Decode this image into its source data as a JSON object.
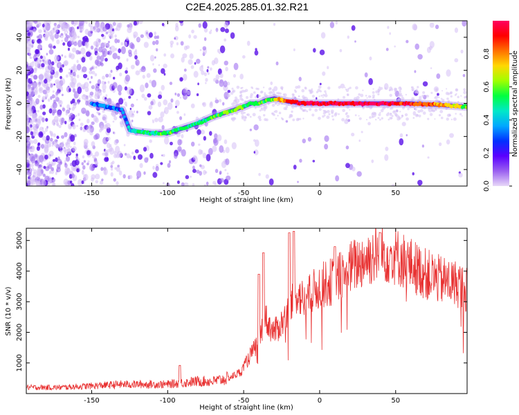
{
  "title": "C2E4.2025.285.01.32.R21",
  "chart_data": [
    {
      "type": "heatmap",
      "xlabel": "Height of straight line (km)",
      "ylabel": "Frequency (Hz)",
      "xlim": [
        -193,
        97
      ],
      "ylim": [
        -50,
        50
      ],
      "xticks": [
        -150,
        -100,
        -50,
        0,
        50
      ],
      "yticks": [
        -40,
        -20,
        0,
        20,
        40
      ],
      "colorbar": {
        "label": "Normalized spectral amplitude",
        "range": [
          0.0,
          1.0
        ],
        "ticks": [
          "0.0",
          "0.2",
          "0.4",
          "0.6",
          "0.8"
        ],
        "colors": [
          "#e8d8f8",
          "#9a60f0",
          "#5a00ff",
          "#0030ff",
          "#00a8ff",
          "#00e8c8",
          "#00ff40",
          "#a0ff00",
          "#ffd800",
          "#ff7000",
          "#ff0000",
          "#ff0060"
        ]
      },
      "ridge": {
        "x": [
          -150,
          -140,
          -130,
          -125,
          -120,
          -110,
          -100,
          -90,
          -80,
          -70,
          -60,
          -50,
          -45,
          -40,
          -35,
          -30,
          -25,
          -20,
          -10,
          0,
          20,
          40,
          60,
          80,
          97
        ],
        "y": [
          0,
          -2,
          -4,
          -16,
          -17,
          -18,
          -18,
          -15,
          -12,
          -8,
          -5,
          -2,
          0,
          0,
          2,
          3,
          2,
          1,
          0,
          0,
          0,
          0,
          0,
          -1,
          -2
        ],
        "amplitude": [
          0.35,
          0.3,
          0.3,
          0.45,
          0.5,
          0.5,
          0.55,
          0.5,
          0.5,
          0.55,
          0.6,
          0.55,
          0.5,
          0.55,
          0.55,
          0.65,
          0.75,
          0.9,
          0.95,
          0.95,
          0.95,
          0.95,
          0.9,
          0.8,
          0.6
        ]
      }
    },
    {
      "type": "line",
      "xlabel": "Height of straight line (km)",
      "ylabel": "SNR (10 * v/v)",
      "xlim": [
        -193,
        97
      ],
      "ylim": [
        0,
        5400
      ],
      "xticks": [
        -150,
        -100,
        -50,
        0,
        50
      ],
      "yticks": [
        1000,
        2000,
        3000,
        4000,
        5000
      ],
      "line_color": "#e83030",
      "envelope": {
        "x": [
          -193,
          -170,
          -150,
          -130,
          -110,
          -100,
          -90,
          -80,
          -70,
          -60,
          -52,
          -45,
          -40,
          -36,
          -33,
          -30,
          -25,
          -20,
          -15,
          -10,
          -5,
          0,
          10,
          20,
          30,
          40,
          50,
          60,
          70,
          80,
          90,
          97
        ],
        "y": [
          200,
          200,
          250,
          300,
          300,
          300,
          350,
          400,
          400,
          500,
          700,
          1300,
          1700,
          2500,
          2200,
          2000,
          2300,
          2700,
          3300,
          3000,
          3300,
          3500,
          3700,
          4100,
          4400,
          4600,
          4500,
          4200,
          3900,
          3700,
          3600,
          3400
        ]
      },
      "spikes": [
        {
          "x": -92,
          "y": 920
        },
        {
          "x": -40,
          "y": 3900
        },
        {
          "x": -37,
          "y": 4600
        },
        {
          "x": -20,
          "y": 5250
        },
        {
          "x": -17,
          "y": 5300
        },
        {
          "x": 10,
          "y": 4800
        },
        {
          "x": 40,
          "y": 5250
        }
      ]
    }
  ]
}
